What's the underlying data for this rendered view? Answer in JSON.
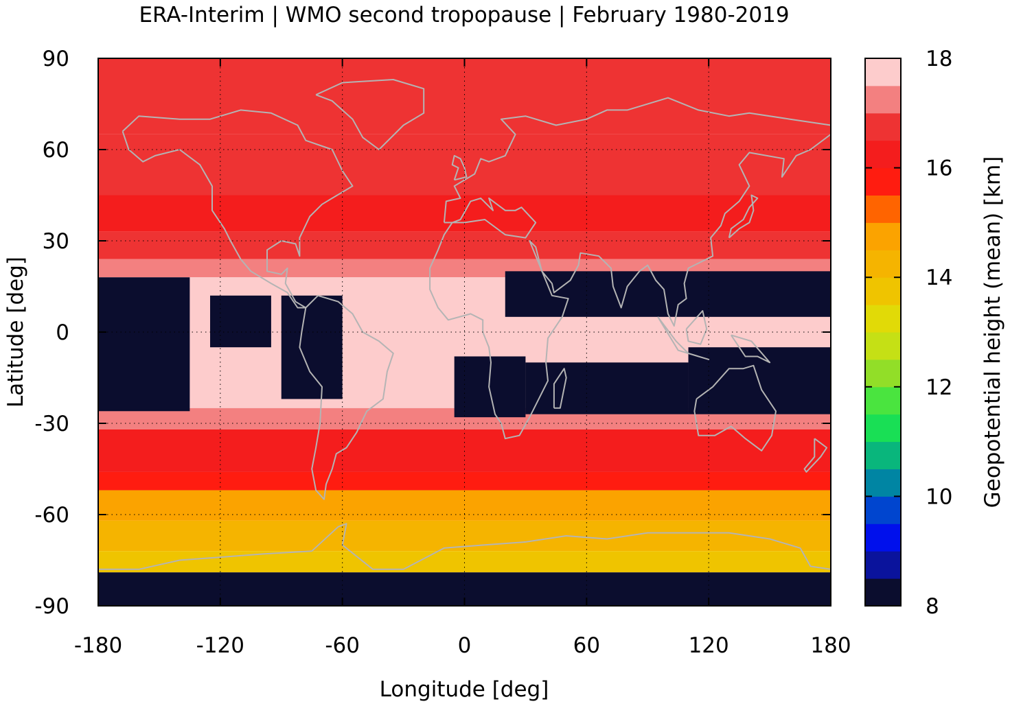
{
  "title": "ERA-Interim | WMO second tropopause | February 1980-2019",
  "xaxis": {
    "label": "Longitude [deg]",
    "range": [
      -180,
      180
    ],
    "ticks": [
      -180,
      -120,
      -60,
      0,
      60,
      120,
      180
    ],
    "tick_labels": [
      "-180",
      "-120",
      "-60",
      "0",
      "60",
      "120",
      "180"
    ]
  },
  "yaxis": {
    "label": "Latitude [deg]",
    "range": [
      -90,
      90
    ],
    "ticks": [
      90,
      60,
      30,
      0,
      -30,
      -60,
      -90
    ],
    "tick_labels": [
      "90",
      "60",
      "30",
      "0",
      "-30",
      "-60",
      "-90"
    ]
  },
  "grid": "dotted",
  "coastlines": "gray",
  "colorbar": {
    "label": "Geopotential height (mean) [km]",
    "range": [
      8,
      18
    ],
    "ticks": [
      8,
      10,
      12,
      14,
      16,
      18
    ],
    "tick_labels": [
      "8",
      "10",
      "12",
      "14",
      "16",
      "18"
    ],
    "levels": [
      "#0b0d2e",
      "#0a139c",
      "#0010ec",
      "#0045cf",
      "#0085a3",
      "#09b67c",
      "#19df55",
      "#4ae43f",
      "#92de28",
      "#c5e015",
      "#e1da07",
      "#efc400",
      "#f5b400",
      "#fba300",
      "#ff6400",
      "#ff1c10",
      "#f41d1d",
      "#ee3333",
      "#f38080",
      "#fdcccc"
    ]
  },
  "chart_data": {
    "type": "heatmap",
    "field": "Geopotential height (mean) [km]",
    "x_range": [
      -180,
      180
    ],
    "y_range": [
      -90,
      90
    ],
    "z_range": [
      8,
      18
    ],
    "zonal_pattern": [
      {
        "lat_from": 90,
        "lat_to": 65,
        "value_km": 16.5
      },
      {
        "lat_from": 65,
        "lat_to": 45,
        "value_km": 16.8
      },
      {
        "lat_from": 45,
        "lat_to": 33,
        "value_km": 16.2
      },
      {
        "lat_from": 33,
        "lat_to": 24,
        "value_km": 16.8
      },
      {
        "lat_from": 24,
        "lat_to": 18,
        "value_km": 17.3
      },
      {
        "lat_from": 18,
        "lat_to": -25,
        "value_km": 17.8
      },
      {
        "lat_from": -25,
        "lat_to": -32,
        "value_km": 17.3
      },
      {
        "lat_from": -32,
        "lat_to": -46,
        "value_km": 16.4
      },
      {
        "lat_from": -46,
        "lat_to": -52,
        "value_km": 15.6
      },
      {
        "lat_from": -52,
        "lat_to": -62,
        "value_km": 14.6
      },
      {
        "lat_from": -62,
        "lat_to": -72,
        "value_km": 14.2
      },
      {
        "lat_from": -72,
        "lat_to": -79,
        "value_km": 13.8
      },
      {
        "lat_from": -79,
        "lat_to": -90,
        "value_km": 8.2
      }
    ],
    "missing_regions": [
      {
        "lon": [
          -180,
          -135
        ],
        "lat": [
          -26,
          18
        ]
      },
      {
        "lon": [
          -125,
          -95
        ],
        "lat": [
          -5,
          12
        ]
      },
      {
        "lon": [
          -90,
          -60
        ],
        "lat": [
          -22,
          12
        ]
      },
      {
        "lon": [
          -5,
          30
        ],
        "lat": [
          -28,
          -8
        ]
      },
      {
        "lon": [
          30,
          110
        ],
        "lat": [
          -27,
          -10
        ]
      },
      {
        "lon": [
          110,
          180
        ],
        "lat": [
          -27,
          -5
        ]
      },
      {
        "lon": [
          20,
          180
        ],
        "lat": [
          5,
          20
        ]
      }
    ]
  }
}
